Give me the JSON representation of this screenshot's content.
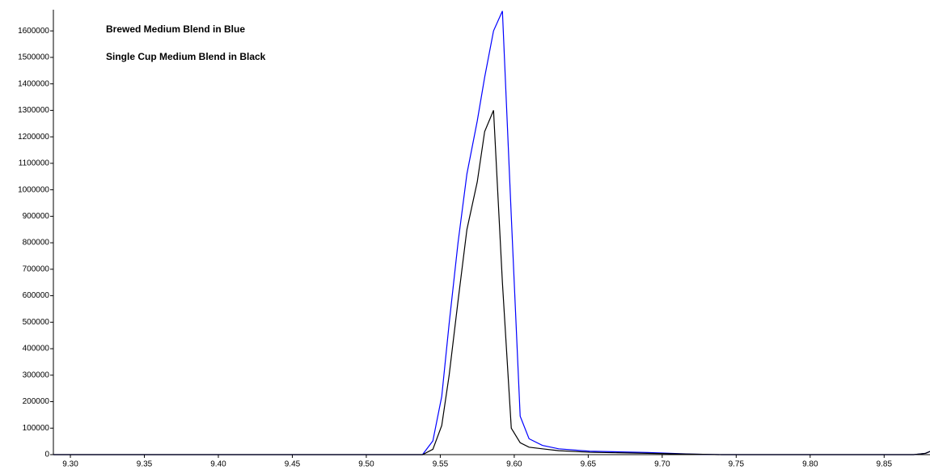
{
  "chart_data": {
    "type": "line",
    "x": [
      9.2885,
      9.4,
      9.41,
      9.52,
      9.538,
      9.545,
      9.551,
      9.556,
      9.562,
      9.568,
      9.575,
      9.58,
      9.586,
      9.592,
      9.598,
      9.604,
      9.61,
      9.619,
      9.63,
      9.651,
      9.69,
      9.72,
      9.74,
      9.87,
      9.878,
      9.881
    ],
    "series": [
      {
        "name": "Brewed Medium Blend in Blue",
        "color": "#0000ff",
        "values": [
          0,
          0,
          0,
          0,
          0,
          52000,
          220000,
          495000,
          800000,
          1060000,
          1260000,
          1425000,
          1600000,
          1675000,
          900000,
          145000,
          60000,
          35000,
          22000,
          13000,
          8000,
          2000,
          0,
          0,
          5000,
          12000
        ]
      },
      {
        "name": "Single Cup Medium Blend in Black",
        "color": "#000000",
        "values": [
          0,
          0,
          0,
          0,
          0,
          20000,
          110000,
          300000,
          580000,
          850000,
          1030000,
          1220000,
          1300000,
          650000,
          100000,
          45000,
          28000,
          22000,
          15000,
          9000,
          5000,
          2000,
          0,
          0,
          5000,
          12000
        ]
      }
    ],
    "xlim": [
      9.2885,
      9.881
    ],
    "ylim": [
      0,
      1680000
    ],
    "xticks": [
      {
        "value": 9.3,
        "label": "9.30"
      },
      {
        "value": 9.35,
        "label": "9.35"
      },
      {
        "value": 9.4,
        "label": "9.40"
      },
      {
        "value": 9.45,
        "label": "9.45"
      },
      {
        "value": 9.5,
        "label": "9.50"
      },
      {
        "value": 9.55,
        "label": "9.55"
      },
      {
        "value": 9.6,
        "label": "9.60"
      },
      {
        "value": 9.65,
        "label": "9.65"
      },
      {
        "value": 9.7,
        "label": "9.70"
      },
      {
        "value": 9.75,
        "label": "9.75"
      },
      {
        "value": 9.8,
        "label": "9.80"
      },
      {
        "value": 9.85,
        "label": "9.85"
      }
    ],
    "yticks": [
      0,
      100000,
      200000,
      300000,
      400000,
      500000,
      600000,
      700000,
      800000,
      900000,
      1000000,
      1100000,
      1200000,
      1300000,
      1400000,
      1500000,
      1600000
    ]
  }
}
